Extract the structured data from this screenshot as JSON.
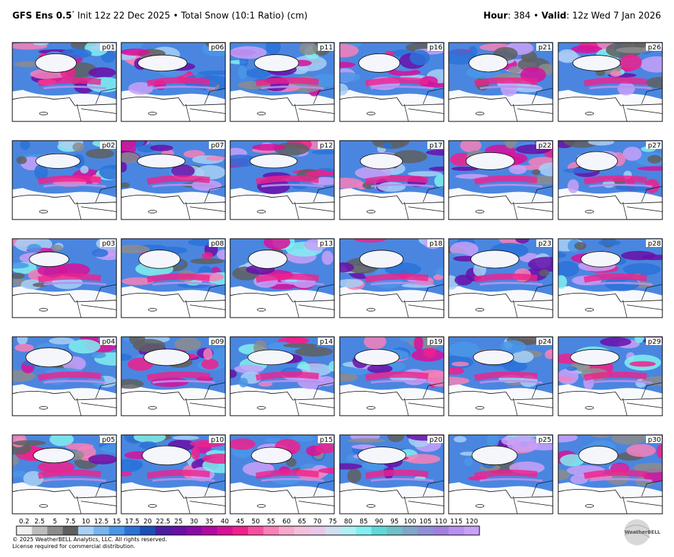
{
  "header": {
    "model": "GFS Ens 0.5",
    "degree": "°",
    "description": " Init 12z 22 Dec 2025 • Total Snow (10:1 Ratio) (cm)",
    "hour_label": "Hour",
    "hour_value": ": 384 • ",
    "valid_label": "Valid",
    "valid_value": ": 12z Wed 7 Jan 2026"
  },
  "panels": [
    [
      "p01",
      "p06",
      "p11",
      "p16",
      "p21",
      "p26"
    ],
    [
      "p02",
      "p07",
      "p12",
      "p17",
      "p22",
      "p27"
    ],
    [
      "p03",
      "p08",
      "p13",
      "p18",
      "p23",
      "p28"
    ],
    [
      "p04",
      "p09",
      "p14",
      "p19",
      "p24",
      "p29"
    ],
    [
      "p05",
      "p10",
      "p15",
      "p20",
      "p25",
      "p30"
    ]
  ],
  "colorbar": {
    "ticks": [
      0.2,
      2.5,
      5,
      7.5,
      10,
      12.5,
      15,
      17.5,
      20,
      22.5,
      25,
      30,
      35,
      40,
      45,
      50,
      55,
      60,
      65,
      70,
      75,
      80,
      85,
      90,
      95,
      100,
      105,
      110,
      115,
      120
    ],
    "colors": [
      "#f0f0f0",
      "#bdbdbd",
      "#8c8c8c",
      "#5f5f5f",
      "#a8d0f5",
      "#78b4f0",
      "#4a96e8",
      "#2a72d8",
      "#1b4fb8",
      "#4a1fa0",
      "#6a0fa8",
      "#8a0aa8",
      "#b00aa0",
      "#d8109a",
      "#f0208c",
      "#f5509f",
      "#f780b8",
      "#f8a8cc",
      "#f2c0dc",
      "#e8c8e8",
      "#d0e0f0",
      "#b0f0f5",
      "#80f0ef",
      "#60d8d8",
      "#70c0c8",
      "#80a8c8",
      "#9090d8",
      "#a080e0",
      "#b890f0",
      "#c8a0f8"
    ]
  },
  "footer": {
    "copyright": "© 2025 WeatherBELL Analytics, LLC. All rights reserved.",
    "license": "License required for commercial distribution.",
    "logo": "WeatherBELL"
  }
}
